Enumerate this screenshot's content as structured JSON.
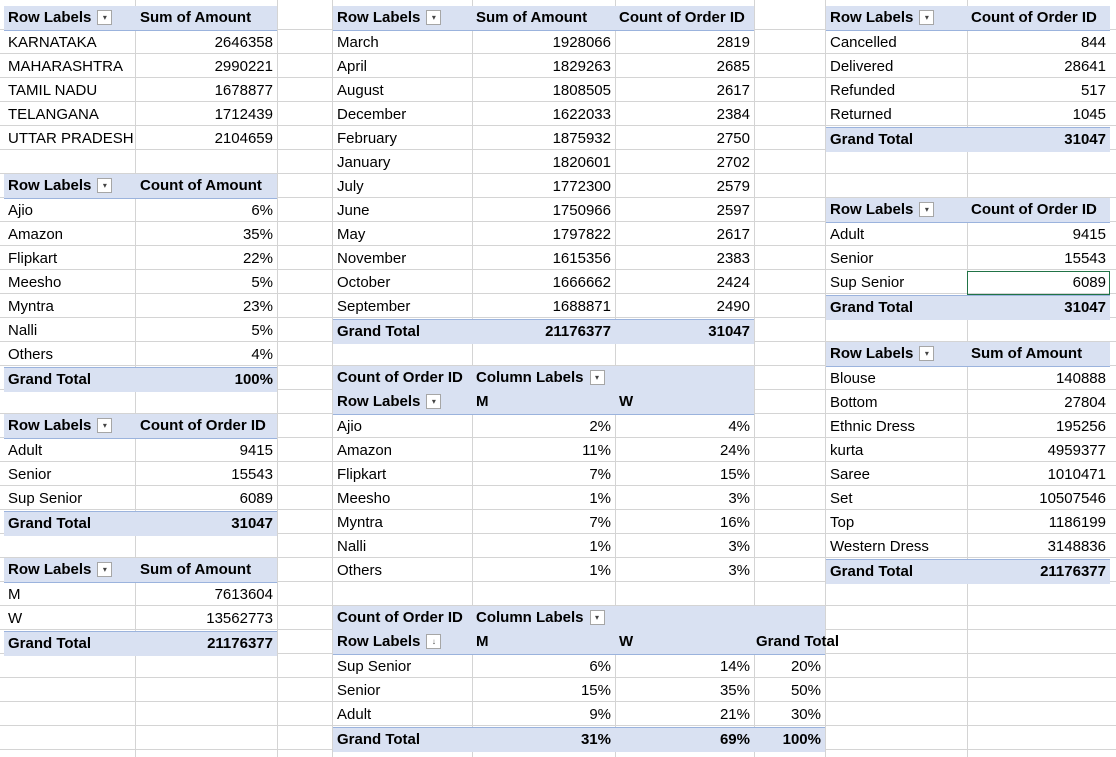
{
  "pivot_state": {
    "header": {
      "row_label": "Row Labels",
      "value": "Sum of Amount"
    },
    "rows": [
      {
        "label": "KARNATAKA",
        "value": "2646358"
      },
      {
        "label": "MAHARASHTRA",
        "value": "2990221"
      },
      {
        "label": "TAMIL NADU",
        "value": "1678877"
      },
      {
        "label": "TELANGANA",
        "value": "1712439"
      },
      {
        "label": "UTTAR PRADESH",
        "value": "2104659"
      }
    ]
  },
  "pivot_channel_pct": {
    "header": {
      "row_label": "Row Labels",
      "value": "Count of Amount"
    },
    "rows": [
      {
        "label": "Ajio",
        "value": "6%"
      },
      {
        "label": "Amazon",
        "value": "35%"
      },
      {
        "label": "Flipkart",
        "value": "22%"
      },
      {
        "label": "Meesho",
        "value": "5%"
      },
      {
        "label": "Myntra",
        "value": "23%"
      },
      {
        "label": "Nalli",
        "value": "5%"
      },
      {
        "label": "Others",
        "value": "4%"
      }
    ],
    "total": {
      "label": "Grand Total",
      "value": "100%"
    }
  },
  "pivot_age_left": {
    "header": {
      "row_label": "Row Labels",
      "value": "Count of Order ID"
    },
    "rows": [
      {
        "label": "Adult",
        "value": "9415"
      },
      {
        "label": "Senior",
        "value": "15543"
      },
      {
        "label": "Sup Senior",
        "value": "6089"
      }
    ],
    "total": {
      "label": "Grand Total",
      "value": "31047"
    }
  },
  "pivot_gender": {
    "header": {
      "row_label": "Row Labels",
      "value": "Sum of Amount"
    },
    "rows": [
      {
        "label": "M",
        "value": "7613604"
      },
      {
        "label": "W",
        "value": "13562773"
      }
    ],
    "total": {
      "label": "Grand Total",
      "value": "21176377"
    }
  },
  "pivot_month": {
    "header": {
      "row_label": "Row Labels",
      "v1": "Sum of Amount",
      "v2": "Count of Order ID"
    },
    "rows": [
      {
        "label": "March",
        "v1": "1928066",
        "v2": "2819"
      },
      {
        "label": "April",
        "v1": "1829263",
        "v2": "2685"
      },
      {
        "label": "August",
        "v1": "1808505",
        "v2": "2617"
      },
      {
        "label": "December",
        "v1": "1622033",
        "v2": "2384"
      },
      {
        "label": "February",
        "v1": "1875932",
        "v2": "2750"
      },
      {
        "label": "January",
        "v1": "1820601",
        "v2": "2702"
      },
      {
        "label": "July",
        "v1": "1772300",
        "v2": "2579"
      },
      {
        "label": "June",
        "v1": "1750966",
        "v2": "2597"
      },
      {
        "label": "May",
        "v1": "1797822",
        "v2": "2617"
      },
      {
        "label": "November",
        "v1": "1615356",
        "v2": "2383"
      },
      {
        "label": "October",
        "v1": "1666662",
        "v2": "2424"
      },
      {
        "label": "September",
        "v1": "1688871",
        "v2": "2490"
      }
    ],
    "total": {
      "label": "Grand Total",
      "v1": "21176377",
      "v2": "31047"
    }
  },
  "pivot_channel_gender": {
    "header1": {
      "measure": "Count of Order ID",
      "col_labels": "Column Labels"
    },
    "header2": {
      "row_label": "Row Labels",
      "m": "M",
      "w": "W"
    },
    "rows": [
      {
        "label": "Ajio",
        "m": "2%",
        "w": "4%"
      },
      {
        "label": "Amazon",
        "m": "11%",
        "w": "24%"
      },
      {
        "label": "Flipkart",
        "m": "7%",
        "w": "15%"
      },
      {
        "label": "Meesho",
        "m": "1%",
        "w": "3%"
      },
      {
        "label": "Myntra",
        "m": "7%",
        "w": "16%"
      },
      {
        "label": "Nalli",
        "m": "1%",
        "w": "3%"
      },
      {
        "label": "Others",
        "m": "1%",
        "w": "3%"
      }
    ]
  },
  "pivot_age_gender": {
    "header1": {
      "measure": "Count of Order ID",
      "col_labels": "Column Labels"
    },
    "header2": {
      "row_label": "Row Labels",
      "m": "M",
      "w": "W",
      "gt": "Grand Total"
    },
    "rows": [
      {
        "label": "Sup Senior",
        "m": "6%",
        "w": "14%",
        "gt": "20%"
      },
      {
        "label": "Senior",
        "m": "15%",
        "w": "35%",
        "gt": "50%"
      },
      {
        "label": "Adult",
        "m": "9%",
        "w": "21%",
        "gt": "30%"
      }
    ],
    "total": {
      "label": "Grand Total",
      "m": "31%",
      "w": "69%",
      "gt": "100%"
    }
  },
  "pivot_status": {
    "header": {
      "row_label": "Row Labels",
      "value": "Count of Order ID"
    },
    "rows": [
      {
        "label": "Cancelled",
        "value": "844"
      },
      {
        "label": "Delivered",
        "value": "28641"
      },
      {
        "label": "Refunded",
        "value": "517"
      },
      {
        "label": "Returned",
        "value": "1045"
      }
    ],
    "total": {
      "label": "Grand Total",
      "value": "31047"
    }
  },
  "pivot_age_right": {
    "header": {
      "row_label": "Row Labels",
      "value": "Count of Order ID"
    },
    "rows": [
      {
        "label": "Adult",
        "value": "9415"
      },
      {
        "label": "Senior",
        "value": "15543"
      },
      {
        "label": "Sup Senior",
        "value": "6089"
      }
    ],
    "total": {
      "label": "Grand Total",
      "value": "31047"
    }
  },
  "pivot_category": {
    "header": {
      "row_label": "Row Labels",
      "value": "Sum of Amount"
    },
    "rows": [
      {
        "label": "Blouse",
        "value": "140888"
      },
      {
        "label": "Bottom",
        "value": "27804"
      },
      {
        "label": "Ethnic Dress",
        "value": "195256"
      },
      {
        "label": "kurta",
        "value": "4959377"
      },
      {
        "label": "Saree",
        "value": "1010471"
      },
      {
        "label": "Set",
        "value": "10507546"
      },
      {
        "label": "Top",
        "value": "1186199"
      },
      {
        "label": "Western Dress",
        "value": "3148836"
      }
    ],
    "total": {
      "label": "Grand Total",
      "value": "21176377"
    }
  },
  "icons": {
    "filter_dropdown": "filter-dropdown-icon",
    "dropdown": "dropdown-icon",
    "sort_dropdown": "sort-dropdown-icon"
  }
}
